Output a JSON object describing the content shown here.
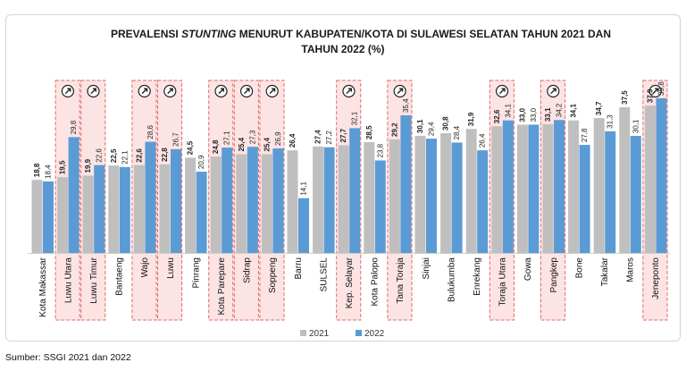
{
  "chart_data": {
    "type": "bar",
    "title_parts": [
      "PREVALENSI ",
      "STUNTING",
      " MENURUT KABUPATEN/KOTA DI SULAWESI SELATAN TAHUN 2021 DAN"
    ],
    "title_line2": "TAHUN 2022 (%)",
    "categories": [
      "Kota Makassar",
      "Luwu Utara",
      "Luwu Timur",
      "Bantaeng",
      "Wajo",
      "Luwu",
      "Pinrang",
      "Kota Parepare",
      "Sidrap",
      "Soppeng",
      "Barru",
      "SULSEL",
      "Kep. Selayar",
      "Kota Palopo",
      "Tana Toraja",
      "Sinjai",
      "Bulukumba",
      "Enrekang",
      "Toraja Utara",
      "Gowa",
      "Pangkep",
      "Bone",
      "Takalar",
      "Maros",
      "Jeneponto"
    ],
    "series": [
      {
        "name": "2021",
        "color": "#bfbfbf",
        "values": [
          18.8,
          19.5,
          19.9,
          22.5,
          22.6,
          22.8,
          24.5,
          24.8,
          25.4,
          25.4,
          26.4,
          27.4,
          27.7,
          28.5,
          29.2,
          30.1,
          30.8,
          31.9,
          32.6,
          33.0,
          33.1,
          34.1,
          34.7,
          37.5,
          37.9
        ]
      },
      {
        "name": "2022",
        "color": "#5b9bd5",
        "values": [
          18.4,
          29.8,
          22.6,
          22.1,
          28.6,
          26.7,
          20.9,
          27.1,
          27.3,
          26.9,
          14.1,
          27.2,
          32.1,
          23.8,
          35.4,
          29.4,
          28.4,
          26.4,
          34.1,
          33.0,
          34.2,
          27.8,
          31.3,
          30.1,
          39.8
        ]
      }
    ],
    "value_labels_2021": [
      "18,8",
      "19,5",
      "19,9",
      "22,5",
      "22,6",
      "22,8",
      "24,5",
      "24,8",
      "25,4",
      "25,4",
      "26,4",
      "27,4",
      "27,7",
      "28,5",
      "29,2",
      "30,1",
      "30,8",
      "31,9",
      "32,6",
      "33,0",
      "33,1",
      "34,1",
      "34,7",
      "37,5",
      "37,9"
    ],
    "value_labels_2022": [
      "18,4",
      "29,8",
      "22,6",
      "22,1",
      "28,6",
      "26,7",
      "20,9",
      "27,1",
      "27,3",
      "26,9",
      "14,1",
      "27,2",
      "32,1",
      "23,8",
      "35,4",
      "29,4",
      "28,4",
      "26,4",
      "34,1",
      "33,0",
      "34,2",
      "27,8",
      "31,3",
      "30,1",
      "39,8"
    ],
    "highlighted_increase": [
      "Luwu Utara",
      "Luwu Timur",
      "Wajo",
      "Luwu",
      "Kota Parepare",
      "Sidrap",
      "Soppeng",
      "Kep. Selayar",
      "Tana Toraja",
      "Toraja Utara",
      "Pangkep",
      "Jeneponto"
    ],
    "highlight_color": "#f4a6a6",
    "increase_icon": "arrow-up-right-circle-icon",
    "legend": [
      "2021",
      "2022"
    ],
    "legend_placement": "bottom-center",
    "ylim": [
      0,
      45
    ],
    "grid": false
  },
  "source": "Sumber: SSGI 2021 dan 2022"
}
